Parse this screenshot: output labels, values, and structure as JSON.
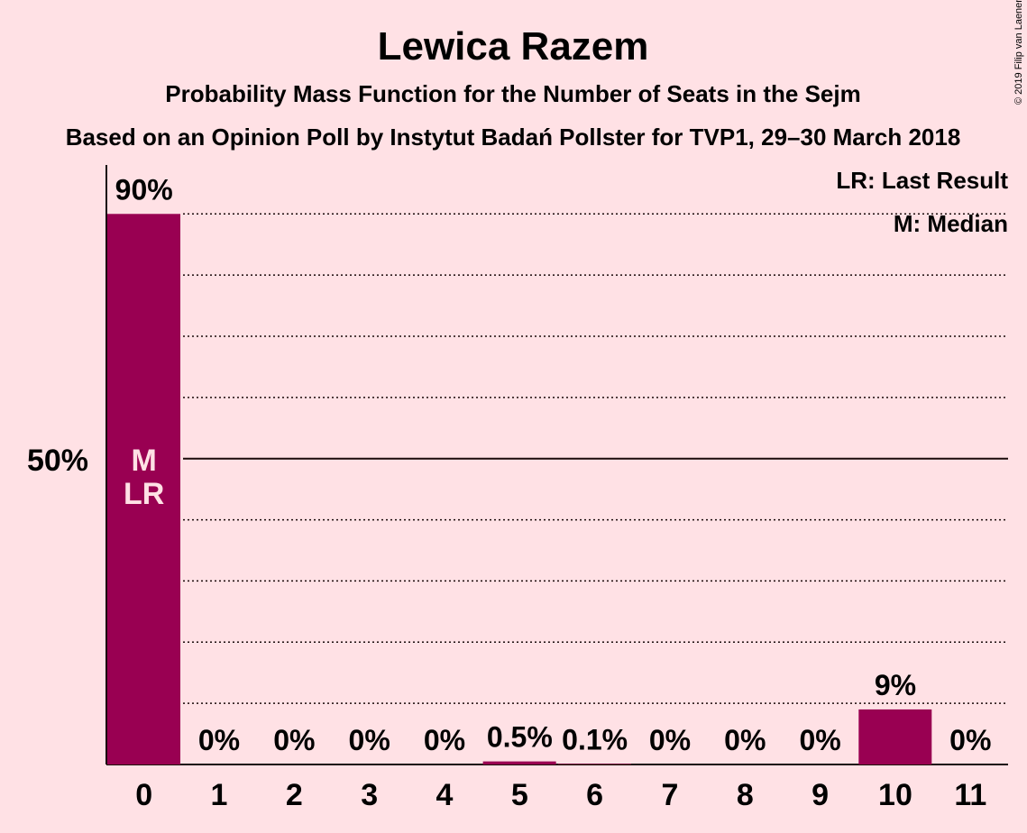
{
  "title": "Lewica Razem",
  "subtitle1": "Probability Mass Function for the Number of Seats in the Sejm",
  "subtitle2": "Based on an Opinion Poll by Instytut Badań Pollster for TVP1, 29–30 March 2018",
  "copyright": "© 2019 Filip van Laenen",
  "legend": {
    "last_result": "LR: Last Result",
    "median": "M: Median"
  },
  "colors": {
    "background": "#FFE1E5",
    "bar": "#990052",
    "text": "#1a0a0a"
  },
  "chart_data": {
    "type": "bar",
    "categories": [
      "0",
      "1",
      "2",
      "3",
      "4",
      "5",
      "6",
      "7",
      "8",
      "9",
      "10",
      "11"
    ],
    "values": [
      90,
      0,
      0,
      0,
      0,
      0.5,
      0.1,
      0,
      0,
      0,
      9,
      0
    ],
    "value_labels": [
      "90%",
      "0%",
      "0%",
      "0%",
      "0%",
      "0.5%",
      "0.1%",
      "0%",
      "0%",
      "0%",
      "9%",
      "0%"
    ],
    "ylim": [
      0,
      98
    ],
    "y_tick_label": "50%",
    "y_tick_value": 50,
    "gridlines": [
      10,
      20,
      30,
      40,
      60,
      70,
      80,
      90
    ],
    "median_seat": "0",
    "last_result_seat": "0",
    "median_marker": "M",
    "last_result_marker": "LR",
    "grid": true,
    "legend_position": "top-right"
  }
}
